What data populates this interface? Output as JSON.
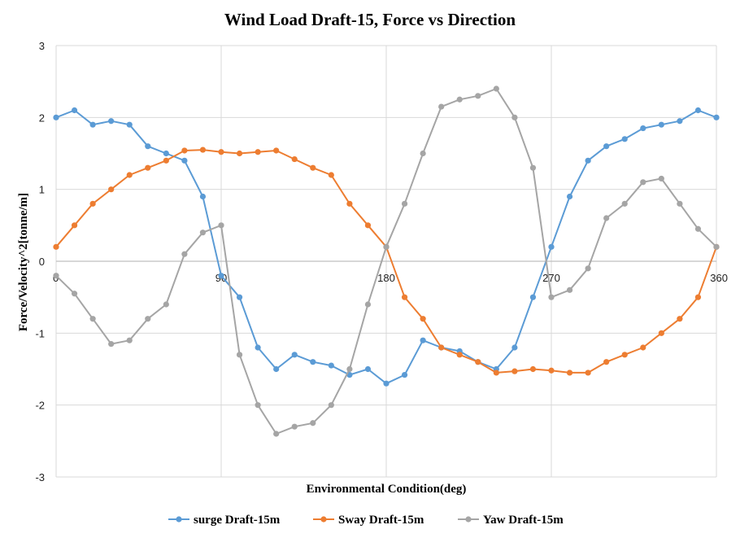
{
  "chart_data": {
    "type": "line",
    "title": "Wind Load Draft-15, Force vs Direction",
    "xlabel": "Environmental Condition(deg)",
    "ylabel": "Force/Velocity^2[tonne/m]",
    "xlim": [
      0,
      360
    ],
    "ylim": [
      -3,
      3
    ],
    "xticks": [
      0,
      90,
      180,
      270,
      360
    ],
    "yticks": [
      -3,
      -2,
      -1,
      0,
      1,
      2,
      3
    ],
    "grid": true,
    "legend_position": "bottom",
    "x": [
      0,
      10,
      20,
      30,
      40,
      50,
      60,
      70,
      80,
      90,
      100,
      110,
      120,
      130,
      140,
      150,
      160,
      170,
      180,
      190,
      200,
      210,
      220,
      230,
      240,
      250,
      260,
      270,
      280,
      290,
      300,
      310,
      320,
      330,
      340,
      350,
      360
    ],
    "series": [
      {
        "name": "surge Draft-15m",
        "color": "#5B9BD5",
        "values": [
          2.0,
          2.1,
          1.9,
          1.95,
          1.9,
          1.6,
          1.5,
          1.4,
          0.9,
          -0.2,
          -0.5,
          -1.2,
          -1.5,
          -1.3,
          -1.4,
          -1.45,
          -1.58,
          -1.5,
          -1.7,
          -1.58,
          -1.1,
          -1.2,
          -1.25,
          -1.4,
          -1.5,
          -1.2,
          -0.5,
          0.2,
          0.9,
          1.4,
          1.6,
          1.7,
          1.85,
          1.9,
          1.95,
          2.1,
          2.0
        ]
      },
      {
        "name": "Sway Draft-15m",
        "color": "#ED7D31",
        "values": [
          0.2,
          0.5,
          0.8,
          1.0,
          1.2,
          1.3,
          1.4,
          1.54,
          1.55,
          1.52,
          1.5,
          1.52,
          1.54,
          1.42,
          1.3,
          1.2,
          0.8,
          0.5,
          0.2,
          -0.5,
          -0.8,
          -1.2,
          -1.3,
          -1.4,
          -1.55,
          -1.53,
          -1.5,
          -1.52,
          -1.55,
          -1.55,
          -1.4,
          -1.3,
          -1.2,
          -1.0,
          -0.8,
          -0.5,
          0.2
        ]
      },
      {
        "name": "Yaw Draft-15m",
        "color": "#A5A5A5",
        "values": [
          -0.2,
          -0.45,
          -0.8,
          -1.15,
          -1.1,
          -0.8,
          -0.6,
          0.1,
          0.4,
          0.5,
          -1.3,
          -2.0,
          -2.4,
          -2.3,
          -2.25,
          -2.0,
          -1.5,
          -0.6,
          0.2,
          0.8,
          1.5,
          2.15,
          2.25,
          2.3,
          2.4,
          2.0,
          1.3,
          -0.5,
          -0.4,
          -0.1,
          0.6,
          0.8,
          1.1,
          1.15,
          0.8,
          0.45,
          0.2
        ]
      }
    ]
  }
}
